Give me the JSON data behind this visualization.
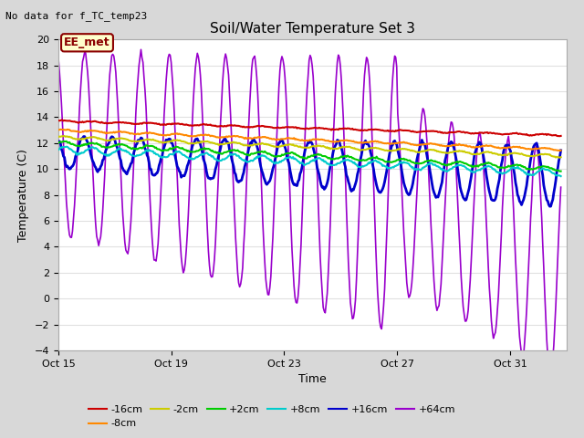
{
  "title": "Soil/Water Temperature Set 3",
  "xlabel": "Time",
  "ylabel": "Temperature (C)",
  "top_left_note": "No data for f_TC_temp23",
  "annotation_label": "EE_met",
  "ylim": [
    -4,
    20
  ],
  "yticks": [
    -4,
    -2,
    0,
    2,
    4,
    6,
    8,
    10,
    12,
    14,
    16,
    18,
    20
  ],
  "xtick_labels": [
    "Oct 15",
    "Oct 19",
    "Oct 23",
    "Oct 27",
    "Oct 31"
  ],
  "xtick_positions": [
    15,
    19,
    23,
    27,
    31
  ],
  "xlim": [
    15,
    33
  ],
  "series_colors": {
    "-16cm": "#cc0000",
    "-8cm": "#ff8800",
    "-2cm": "#cccc00",
    "+2cm": "#00cc00",
    "+8cm": "#00cccc",
    "+16cm": "#0000cc",
    "+64cm": "#9900cc"
  },
  "fig_bg_color": "#d8d8d8",
  "plot_bg_color": "#ffffff",
  "grid_color": "#e0e0e0",
  "figsize": [
    6.4,
    4.8
  ],
  "dpi": 100,
  "title_fontsize": 11,
  "axis_fontsize": 9,
  "tick_fontsize": 8,
  "legend_fontsize": 8
}
